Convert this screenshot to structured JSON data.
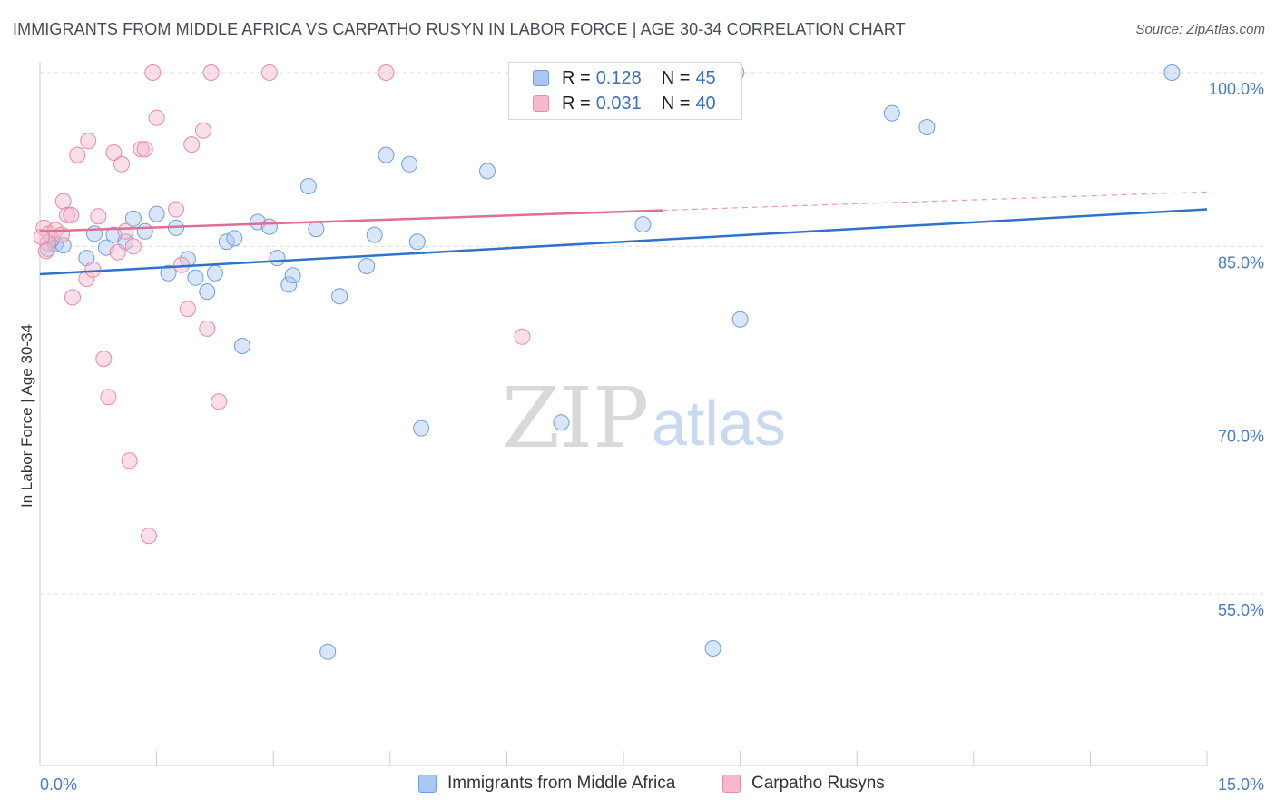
{
  "header": {
    "title": "IMMIGRANTS FROM MIDDLE AFRICA VS CARPATHO RUSYN IN LABOR FORCE | AGE 30-34 CORRELATION CHART",
    "source": "Source: ZipAtlas.com"
  },
  "watermark": {
    "part1": "ZIP",
    "part2": "atlas"
  },
  "legend": {
    "rows": [
      {
        "r_label": "R =",
        "r_value": "0.128",
        "n_label": "N =",
        "n_value": "45",
        "color": "#a9c8f0",
        "border": "#6d9ee0"
      },
      {
        "r_label": "R =",
        "r_value": "0.031",
        "n_label": "N =",
        "n_value": "40",
        "color": "#f6b9cc",
        "border": "#e88aa8"
      }
    ]
  },
  "bottom_legend": {
    "items": [
      {
        "label": "Immigrants from Middle Africa",
        "color": "#a9c8f0",
        "border": "#6d9ee0"
      },
      {
        "label": "Carpatho Rusyns",
        "color": "#f6b9cc",
        "border": "#e88aa8"
      }
    ]
  },
  "chart_data": {
    "type": "scatter",
    "title": "IMMIGRANTS FROM MIDDLE AFRICA VS CARPATHO RUSYN IN LABOR FORCE | AGE 30-34 CORRELATION CHART",
    "xlabel": "",
    "ylabel": "In Labor Force | Age 30-34",
    "xlim": [
      0,
      15
    ],
    "ylim": [
      40,
      101
    ],
    "x_tick_labels": [
      "0.0%",
      "15.0%"
    ],
    "y_ticks": [
      55,
      70,
      85,
      100
    ],
    "y_tick_labels": [
      "55.0%",
      "70.0%",
      "85.0%",
      "100.0%"
    ],
    "grid": true,
    "series": [
      {
        "name": "Immigrants from Middle Africa",
        "color": "#a9c8f0",
        "stroke": "#6d9ee0",
        "trend": {
          "x0": 0,
          "y0": 82.6,
          "x1": 15,
          "y1": 88.2,
          "color": "#2f72c9",
          "dash_from": null
        },
        "points": [
          [
            0.1,
            84.8
          ],
          [
            0.2,
            85.2
          ],
          [
            0.3,
            85.1
          ],
          [
            0.6,
            84.0
          ],
          [
            0.7,
            86.1
          ],
          [
            0.85,
            84.9
          ],
          [
            0.95,
            86.0
          ],
          [
            1.1,
            85.4
          ],
          [
            1.2,
            87.4
          ],
          [
            1.35,
            86.3
          ],
          [
            1.5,
            87.8
          ],
          [
            1.65,
            82.7
          ],
          [
            1.75,
            86.6
          ],
          [
            1.9,
            83.9
          ],
          [
            2.0,
            82.3
          ],
          [
            2.15,
            81.1
          ],
          [
            2.25,
            82.7
          ],
          [
            2.4,
            85.4
          ],
          [
            2.5,
            85.7
          ],
          [
            2.6,
            76.4
          ],
          [
            2.8,
            87.1
          ],
          [
            2.95,
            86.7
          ],
          [
            3.05,
            84.0
          ],
          [
            3.2,
            81.7
          ],
          [
            3.25,
            82.5
          ],
          [
            3.45,
            90.2
          ],
          [
            3.55,
            86.5
          ],
          [
            3.7,
            50.0
          ],
          [
            3.85,
            80.7
          ],
          [
            4.2,
            83.3
          ],
          [
            4.3,
            86.0
          ],
          [
            4.45,
            92.9
          ],
          [
            4.75,
            92.1
          ],
          [
            4.85,
            85.4
          ],
          [
            4.9,
            69.3
          ],
          [
            5.75,
            91.5
          ],
          [
            6.7,
            69.8
          ],
          [
            7.75,
            86.9
          ],
          [
            8.65,
            50.3
          ],
          [
            8.95,
            100.0
          ],
          [
            9.0,
            78.7
          ],
          [
            10.95,
            96.5
          ],
          [
            11.4,
            95.3
          ],
          [
            14.55,
            100.0
          ],
          [
            0.15,
            85.6
          ]
        ]
      },
      {
        "name": "Carpatho Rusyns",
        "color": "#f6b9cc",
        "stroke": "#e88aa8",
        "trend": {
          "x0": 0,
          "y0": 86.3,
          "x1": 15,
          "y1": 89.7,
          "color": "#e06e93",
          "dash_from": 8.0
        },
        "points": [
          [
            0.05,
            86.6
          ],
          [
            0.1,
            85.3
          ],
          [
            0.12,
            86.1
          ],
          [
            0.2,
            86.4
          ],
          [
            0.28,
            86.0
          ],
          [
            0.3,
            88.9
          ],
          [
            0.35,
            87.7
          ],
          [
            0.4,
            87.7
          ],
          [
            0.42,
            80.6
          ],
          [
            0.48,
            92.9
          ],
          [
            0.6,
            82.2
          ],
          [
            0.62,
            94.1
          ],
          [
            0.68,
            83.0
          ],
          [
            0.75,
            87.6
          ],
          [
            0.82,
            75.3
          ],
          [
            0.88,
            72.0
          ],
          [
            0.95,
            93.1
          ],
          [
            1.0,
            84.5
          ],
          [
            1.05,
            92.1
          ],
          [
            1.1,
            86.3
          ],
          [
            1.15,
            66.5
          ],
          [
            1.2,
            85.0
          ],
          [
            1.3,
            93.4
          ],
          [
            1.35,
            93.4
          ],
          [
            1.4,
            60.0
          ],
          [
            1.45,
            100.0
          ],
          [
            1.5,
            96.1
          ],
          [
            1.75,
            88.2
          ],
          [
            1.82,
            83.4
          ],
          [
            1.9,
            79.6
          ],
          [
            1.95,
            93.8
          ],
          [
            2.1,
            95.0
          ],
          [
            2.15,
            77.9
          ],
          [
            2.2,
            100.0
          ],
          [
            2.3,
            71.6
          ],
          [
            2.95,
            100.0
          ],
          [
            4.45,
            100.0
          ],
          [
            6.2,
            77.2
          ],
          [
            0.02,
            85.8
          ],
          [
            0.08,
            84.6
          ]
        ]
      }
    ]
  }
}
